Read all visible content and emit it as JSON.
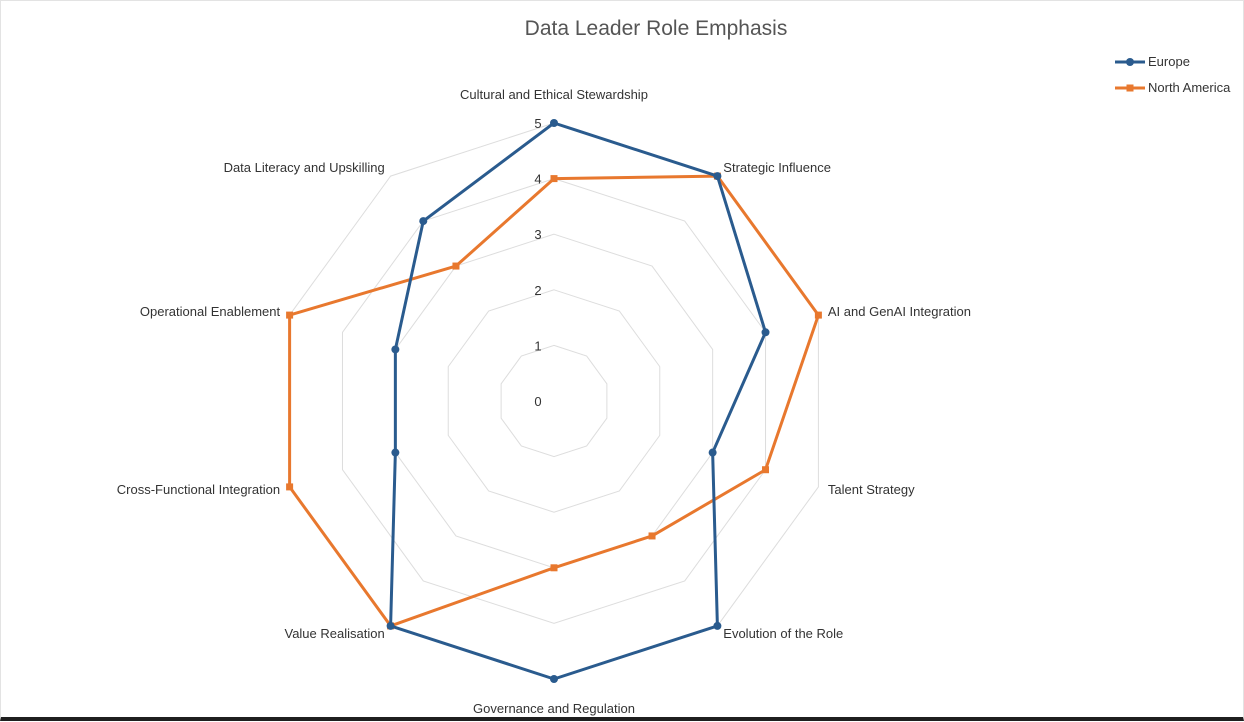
{
  "chart_data": {
    "type": "radar",
    "title": "Data Leader Role Emphasis",
    "axes": [
      "Cultural and Ethical Stewardship",
      "Strategic Influence",
      "AI and GenAI Integration",
      "Talent Strategy",
      "Evolution of the Role",
      "Governance and Regulation",
      "Value Realisation",
      "Cross-Functional Integration",
      "Operational Enablement",
      "Data Literacy and Upskilling"
    ],
    "range": [
      0,
      5
    ],
    "ticks": [
      "0",
      "1",
      "2",
      "3",
      "4",
      "5"
    ],
    "grid": true,
    "legend_position": "top-right",
    "series": [
      {
        "name": "Europe",
        "color": "#2a5b8e",
        "marker": "circle",
        "values": [
          5,
          5,
          4,
          3,
          5,
          5,
          5,
          3,
          3,
          4
        ]
      },
      {
        "name": "North America",
        "color": "#e8782e",
        "marker": "square",
        "values": [
          4,
          5,
          5,
          4,
          3,
          3,
          5,
          5,
          5,
          3
        ]
      }
    ]
  }
}
